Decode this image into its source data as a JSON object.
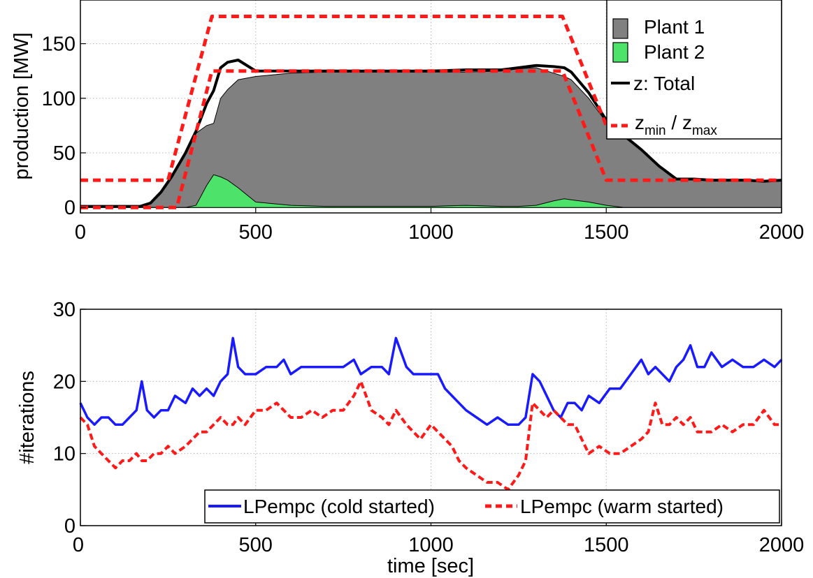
{
  "chart_data": [
    {
      "type": "area",
      "title": "",
      "xlabel": "",
      "ylabel": "production [MW]",
      "xlim": [
        0,
        2000
      ],
      "ylim": [
        -5,
        190
      ],
      "xticks": [
        0,
        500,
        1000,
        1500,
        2000
      ],
      "yticks": [
        0,
        50,
        100,
        150
      ],
      "grid": true,
      "legend_position": "top-right",
      "series": [
        {
          "name": "Plant 1",
          "kind": "stacked-area",
          "color": "#808080",
          "x": [
            0,
            100,
            170,
            200,
            230,
            260,
            300,
            330,
            360,
            380,
            400,
            420,
            450,
            500,
            600,
            700,
            800,
            900,
            1000,
            1100,
            1200,
            1250,
            1300,
            1350,
            1380,
            1400,
            1450,
            1500,
            1550,
            1600,
            1650,
            1700,
            1750,
            1800,
            1850,
            1900,
            1950,
            2000
          ],
          "values": [
            1,
            1,
            1,
            4,
            14,
            28,
            50,
            68,
            75,
            77,
            100,
            108,
            117,
            120,
            123,
            124,
            124,
            124,
            124,
            124,
            125,
            127,
            128,
            123,
            120,
            117,
            100,
            78,
            66,
            53,
            38,
            26,
            26,
            25,
            25,
            25,
            24,
            25
          ]
        },
        {
          "name": "Plant 2",
          "kind": "stacked-area",
          "color": "#4de36b",
          "x": [
            0,
            100,
            170,
            200,
            230,
            260,
            300,
            330,
            360,
            380,
            400,
            420,
            450,
            500,
            600,
            700,
            800,
            900,
            1000,
            1100,
            1200,
            1250,
            1300,
            1350,
            1380,
            1400,
            1450,
            1500,
            1550,
            1600,
            1650,
            1700,
            1750,
            1800,
            1850,
            1900,
            1950,
            2000
          ],
          "values": [
            0,
            0,
            0,
            0,
            0,
            0,
            0,
            2,
            20,
            30,
            28,
            25,
            18,
            5,
            2,
            1,
            1,
            1,
            1,
            2,
            1,
            1,
            2,
            6,
            8,
            7,
            5,
            2,
            0,
            0,
            0,
            0,
            0,
            0,
            0,
            0,
            0,
            0
          ]
        },
        {
          "name": "z: Total",
          "kind": "line",
          "color": "#000000",
          "x": [
            0,
            100,
            170,
            200,
            230,
            260,
            300,
            330,
            360,
            380,
            400,
            420,
            450,
            500,
            600,
            700,
            800,
            900,
            1000,
            1100,
            1200,
            1250,
            1300,
            1350,
            1380,
            1400,
            1450,
            1500,
            1550,
            1600,
            1650,
            1700,
            1750,
            1800,
            1850,
            1900,
            1950,
            2000
          ],
          "values": [
            1,
            1,
            1,
            4,
            14,
            28,
            50,
            70,
            95,
            107,
            128,
            133,
            135,
            125,
            125,
            125,
            125,
            125,
            125,
            126,
            126,
            128,
            130,
            129,
            128,
            124,
            105,
            80,
            66,
            53,
            38,
            26,
            26,
            25,
            25,
            25,
            24,
            25
          ]
        },
        {
          "name": "z_max",
          "kind": "dashed-line",
          "color": "#ff1a1a",
          "x": [
            0,
            250,
            375,
            1375,
            1500,
            2000
          ],
          "values": [
            25,
            25,
            175,
            175,
            75,
            75
          ]
        },
        {
          "name": "z_min",
          "kind": "dashed-line",
          "color": "#ff1a1a",
          "x": [
            0,
            275,
            375,
            1375,
            1500,
            2000
          ],
          "values": [
            0,
            0,
            125,
            125,
            25,
            25
          ]
        }
      ],
      "legend": [
        {
          "label": "Plant 1",
          "swatch": "patch",
          "color": "#808080"
        },
        {
          "label": "Plant 2",
          "swatch": "patch",
          "color": "#4de36b"
        },
        {
          "label": "z: Total",
          "swatch": "solid",
          "color": "#000000"
        },
        {
          "label_parts": [
            "z",
            "min",
            " / z",
            "max"
          ],
          "swatch": "dashed",
          "color": "#ff1a1a"
        }
      ]
    },
    {
      "type": "line",
      "title": "",
      "xlabel": "time [sec]",
      "ylabel": "#iterations",
      "xlim": [
        0,
        2000
      ],
      "ylim": [
        0,
        30
      ],
      "xticks": [
        0,
        500,
        1000,
        1500,
        2000
      ],
      "yticks": [
        0,
        10,
        20,
        30
      ],
      "grid": true,
      "legend_position": "bottom-right",
      "series": [
        {
          "name": "LPempc (cold started)",
          "color": "#1a1aff",
          "dashed": false,
          "x": [
            0,
            20,
            40,
            60,
            80,
            100,
            120,
            140,
            160,
            175,
            190,
            210,
            230,
            250,
            270,
            300,
            320,
            340,
            360,
            380,
            400,
            420,
            435,
            450,
            470,
            500,
            530,
            560,
            580,
            600,
            630,
            660,
            690,
            720,
            750,
            780,
            800,
            830,
            860,
            880,
            900,
            930,
            950,
            970,
            1000,
            1020,
            1040,
            1060,
            1080,
            1100,
            1130,
            1160,
            1190,
            1220,
            1250,
            1270,
            1290,
            1310,
            1330,
            1350,
            1370,
            1390,
            1410,
            1430,
            1450,
            1480,
            1510,
            1540,
            1570,
            1600,
            1620,
            1640,
            1660,
            1680,
            1700,
            1720,
            1740,
            1760,
            1780,
            1800,
            1830,
            1860,
            1890,
            1920,
            1950,
            1980,
            2000
          ],
          "values": [
            17,
            15,
            14,
            15,
            15,
            14,
            14,
            15,
            16,
            20,
            16,
            15,
            16,
            16,
            18,
            17,
            19,
            18,
            19,
            18,
            20,
            21,
            26,
            22,
            21,
            21,
            22,
            22,
            23,
            21,
            22,
            22,
            22,
            22,
            22,
            23,
            21,
            22,
            22,
            21,
            26,
            22,
            21,
            21,
            21,
            21,
            19,
            18,
            17,
            16,
            15,
            14,
            15,
            14,
            14,
            15,
            21,
            20,
            18,
            16,
            15,
            17,
            17,
            16,
            18,
            17,
            19,
            19,
            21,
            23,
            21,
            22,
            21,
            20,
            22,
            23,
            25,
            22,
            22,
            24,
            22,
            23,
            22,
            22,
            23,
            22,
            23
          ]
        },
        {
          "name": "LPempc (warm started)",
          "color": "#ff1a1a",
          "dashed": true,
          "x": [
            0,
            20,
            40,
            60,
            80,
            100,
            120,
            140,
            160,
            175,
            190,
            210,
            230,
            250,
            270,
            300,
            320,
            340,
            360,
            380,
            400,
            420,
            435,
            450,
            470,
            500,
            530,
            560,
            580,
            600,
            630,
            660,
            690,
            720,
            750,
            780,
            800,
            830,
            860,
            880,
            900,
            930,
            950,
            970,
            1000,
            1020,
            1040,
            1060,
            1080,
            1100,
            1130,
            1160,
            1190,
            1220,
            1250,
            1270,
            1290,
            1310,
            1330,
            1350,
            1370,
            1390,
            1410,
            1430,
            1450,
            1480,
            1510,
            1540,
            1570,
            1600,
            1620,
            1640,
            1660,
            1680,
            1700,
            1720,
            1740,
            1760,
            1780,
            1800,
            1830,
            1860,
            1890,
            1920,
            1950,
            1980,
            2000
          ],
          "values": [
            15,
            14,
            11,
            10,
            9,
            8,
            9,
            9,
            10,
            9,
            9,
            10,
            10,
            11,
            10,
            11,
            12,
            13,
            13,
            14,
            15,
            14,
            14,
            15,
            14,
            16,
            16,
            17,
            16,
            15,
            15,
            16,
            15,
            16,
            16,
            18,
            20,
            16,
            15,
            14,
            16,
            14,
            13,
            12,
            14,
            13,
            12,
            11,
            9,
            8,
            7,
            6,
            6,
            5,
            7,
            9,
            17,
            16,
            15,
            16,
            15,
            14,
            14,
            12,
            10,
            11,
            10,
            10,
            11,
            12,
            13,
            17,
            14,
            14,
            15,
            14,
            15,
            13,
            13,
            13,
            14,
            13,
            14,
            14,
            16,
            14,
            14
          ]
        }
      ],
      "legend": [
        {
          "label": "LPempc (cold started)",
          "swatch": "solid",
          "color": "#1a1aff"
        },
        {
          "label": "LPempc (warm started)",
          "swatch": "dashed",
          "color": "#ff1a1a"
        }
      ]
    }
  ]
}
